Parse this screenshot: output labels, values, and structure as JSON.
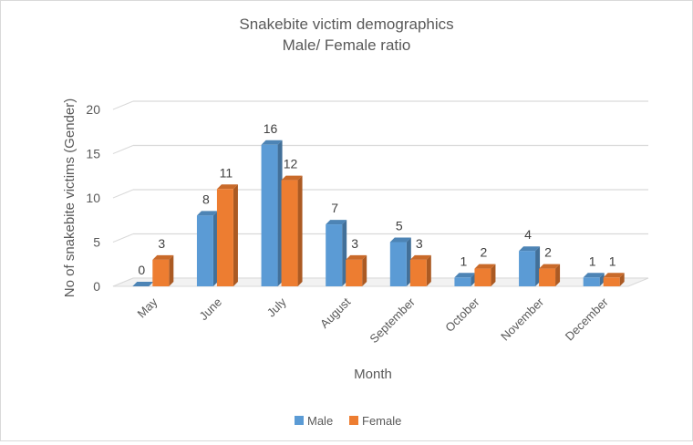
{
  "chart_data": {
    "type": "bar",
    "title": "Snakebite victim demographics",
    "subtitle": "Male/ Female ratio",
    "xlabel": "Month",
    "ylabel": "No of snakebite victims (Gender)",
    "categories": [
      "May",
      "June",
      "July",
      "August",
      "September",
      "October",
      "November",
      "December"
    ],
    "series": [
      {
        "name": "Male",
        "values": [
          0,
          8,
          16,
          7,
          5,
          1,
          4,
          1
        ],
        "color": "#5b9bd5"
      },
      {
        "name": "Female",
        "values": [
          3,
          11,
          12,
          3,
          3,
          2,
          2,
          1
        ],
        "color": "#ed7d31"
      }
    ],
    "ylim": [
      0,
      20
    ],
    "yticks": [
      0,
      5,
      10,
      15,
      20
    ],
    "grid": true,
    "legend_position": "bottom",
    "style": "3d-clustered-column"
  }
}
